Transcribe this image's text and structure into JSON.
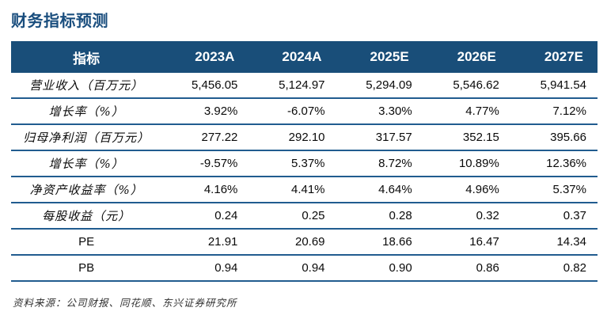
{
  "title": "财务指标预测",
  "table": {
    "columns": [
      "指标",
      "2023A",
      "2024A",
      "2025E",
      "2026E",
      "2027E"
    ],
    "rows": [
      {
        "label": "营业收入（百万元）",
        "values": [
          "5,456.05",
          "5,124.97",
          "5,294.09",
          "5,546.62",
          "5,941.54"
        ]
      },
      {
        "label": "增长率（%）",
        "values": [
          "3.92%",
          "-6.07%",
          "3.30%",
          "4.77%",
          "7.12%"
        ]
      },
      {
        "label": "归母净利润（百万元）",
        "values": [
          "277.22",
          "292.10",
          "317.57",
          "352.15",
          "395.66"
        ]
      },
      {
        "label": "增长率（%）",
        "values": [
          "-9.57%",
          "5.37%",
          "8.72%",
          "10.89%",
          "12.36%"
        ]
      },
      {
        "label": "净资产收益率（%）",
        "values": [
          "4.16%",
          "4.41%",
          "4.64%",
          "4.96%",
          "5.37%"
        ]
      },
      {
        "label": "每股收益（元）",
        "values": [
          "0.24",
          "0.25",
          "0.28",
          "0.32",
          "0.37"
        ]
      },
      {
        "label": "PE",
        "values": [
          "21.91",
          "20.69",
          "18.66",
          "16.47",
          "14.34"
        ]
      },
      {
        "label": "PB",
        "values": [
          "0.94",
          "0.94",
          "0.90",
          "0.86",
          "0.82"
        ]
      }
    ]
  },
  "footer": {
    "source": "资料来源：公司财报、同花顺、东兴证券研究所"
  },
  "colors": {
    "header_background": "#194E79",
    "row_divider": "#215C8F",
    "title_text": "#1A4E7E"
  }
}
